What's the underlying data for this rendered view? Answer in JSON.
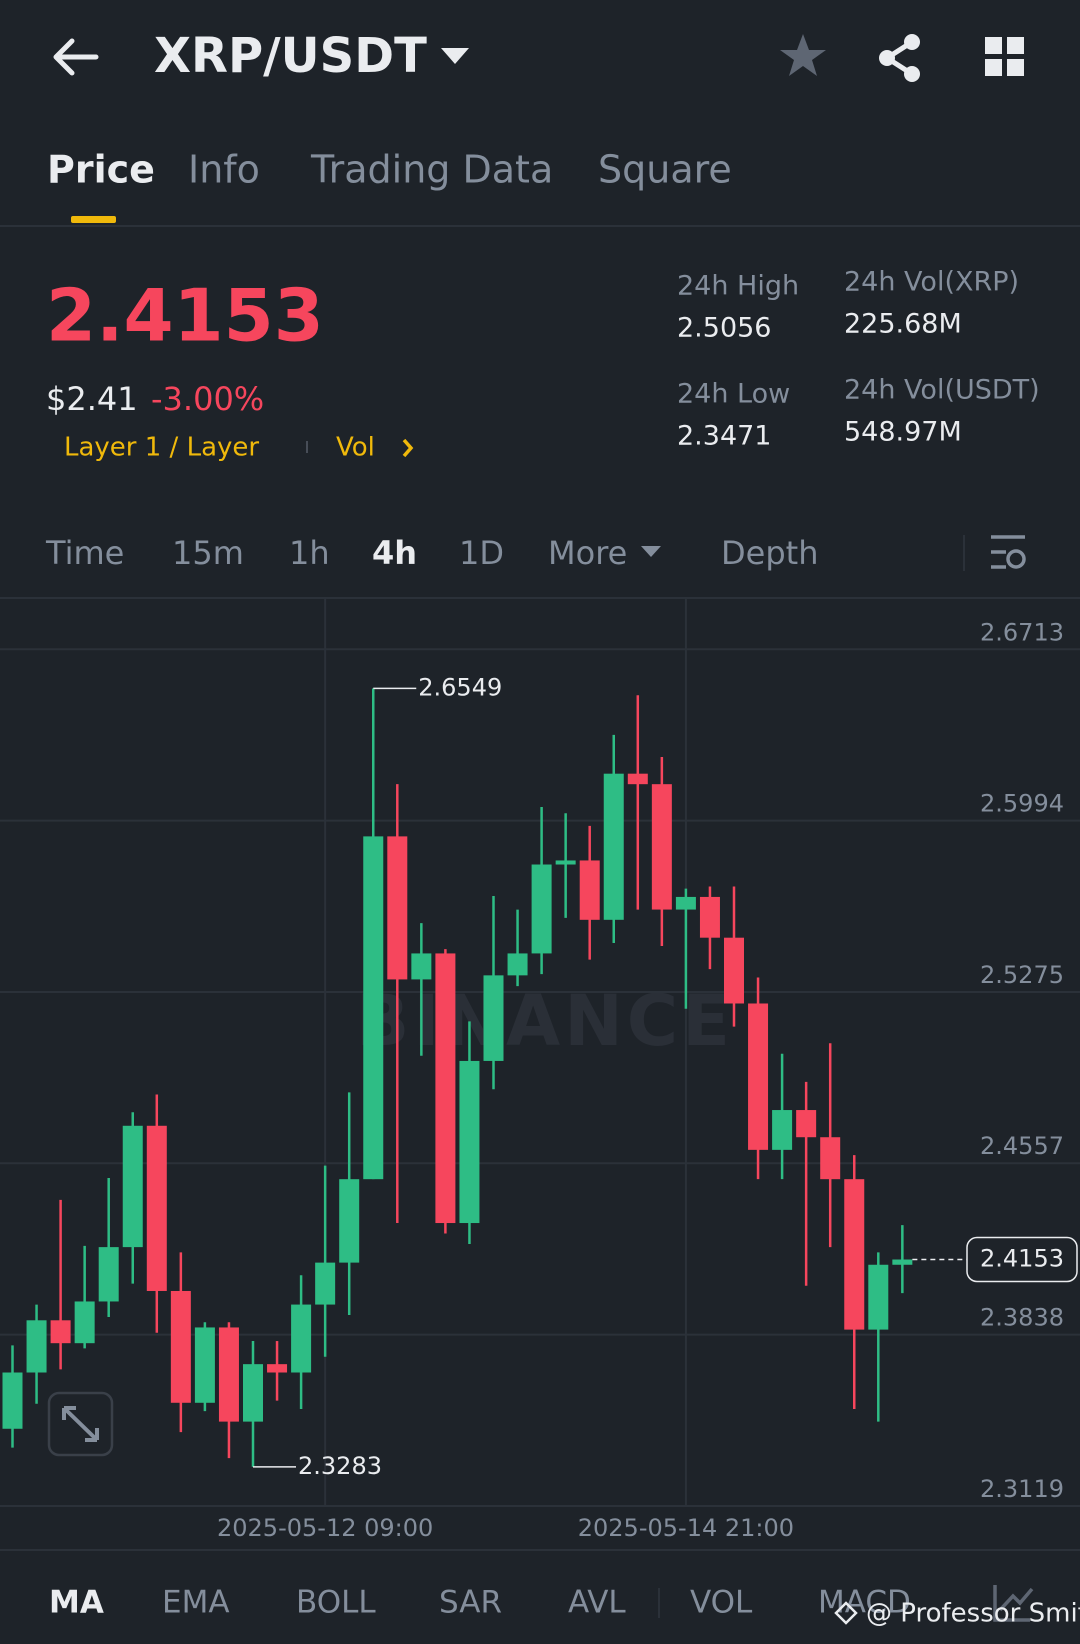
{
  "header": {
    "title": "XRP/USDT"
  },
  "tabs": [
    "Price",
    "Info",
    "Trading Data",
    "Square"
  ],
  "ticker": {
    "price": "2.4153",
    "usd": "$2.41",
    "change": "-3.00%",
    "tags": "Layer 1 / Layer",
    "vol": "Vol"
  },
  "stats": [
    {
      "label": "24h High",
      "value": "2.5056"
    },
    {
      "label": "24h Low",
      "value": "2.3471"
    },
    {
      "label": "24h Vol(XRP)",
      "value": "225.68M"
    },
    {
      "label": "24h Vol(USDT)",
      "value": "548.97M"
    }
  ],
  "intervals": [
    "Time",
    "15m",
    "1h",
    "4h",
    "1D",
    "More",
    "Depth"
  ],
  "chart_data": {
    "type": "candlestick",
    "watermark": "BINANCE",
    "up_color": "#2ebd85",
    "down_color": "#f6465d",
    "grid": true,
    "open": [
      2.3443,
      2.3679,
      2.3898,
      2.3802,
      2.3977,
      2.4205,
      2.4714,
      2.4021,
      2.3552,
      2.3868,
      2.3473,
      2.3714,
      2.3679,
      2.3964,
      2.414,
      2.449,
      2.5928,
      2.5328,
      2.5437,
      2.4306,
      2.4986,
      2.5345,
      2.5437,
      2.581,
      2.5827,
      2.5578,
      2.6191,
      2.6147,
      2.5621,
      2.5674,
      2.5503,
      2.5227,
      2.4613,
      2.478,
      2.4666,
      2.449,
      2.3859,
      2.4131
    ],
    "high": [
      2.3793,
      2.3964,
      2.4403,
      2.421,
      2.4495,
      2.4771,
      2.4845,
      2.4183,
      2.389,
      2.389,
      2.3811,
      2.3811,
      2.4087,
      2.4547,
      2.4854,
      2.6549,
      2.6147,
      2.5564,
      2.5455,
      2.5152,
      2.5678,
      2.5621,
      2.6051,
      2.6025,
      2.5972,
      2.6354,
      2.652,
      2.6261,
      2.5709,
      2.5718,
      2.5718,
      2.5336,
      2.5016,
      2.4898,
      2.506,
      2.4591,
      2.4183,
      2.4297
    ],
    "low": [
      2.3364,
      2.3548,
      2.3692,
      2.378,
      2.3912,
      2.4052,
      2.3846,
      2.3429,
      2.3517,
      2.332,
      2.3283,
      2.3561,
      2.3526,
      2.3745,
      2.392,
      2.449,
      2.4306,
      2.5008,
      2.4262,
      2.4218,
      2.4867,
      2.53,
      2.535,
      2.5586,
      2.5411,
      2.5481,
      2.5621,
      2.5468,
      2.5205,
      2.5371,
      2.513,
      2.449,
      2.449,
      2.4043,
      2.4205,
      2.3526,
      2.3473,
      2.4012
    ],
    "close": [
      2.3679,
      2.3898,
      2.3802,
      2.3977,
      2.4205,
      2.4714,
      2.4021,
      2.3552,
      2.3868,
      2.3473,
      2.3714,
      2.3679,
      2.3964,
      2.414,
      2.449,
      2.5928,
      2.5328,
      2.5437,
      2.4306,
      2.4986,
      2.5345,
      2.5437,
      2.581,
      2.5827,
      2.5578,
      2.6191,
      2.6147,
      2.5621,
      2.5674,
      2.5503,
      2.5227,
      2.4613,
      2.478,
      2.4666,
      2.449,
      2.3859,
      2.4131,
      2.4153
    ],
    "ylim": [
      2.3119,
      2.6928
    ],
    "yticks": [
      2.6713,
      2.5994,
      2.5275,
      2.4557,
      2.3838,
      2.3119
    ],
    "xticks": [
      {
        "value": 13,
        "label": "2025-05-12 09:00"
      },
      {
        "value": 28,
        "label": "2025-05-14 21:00"
      }
    ]
  },
  "indicators": [
    "MA",
    "EMA",
    "BOLL",
    "SAR",
    "AVL",
    "VOL",
    "MACD"
  ],
  "credit": "@ Professor Smith"
}
